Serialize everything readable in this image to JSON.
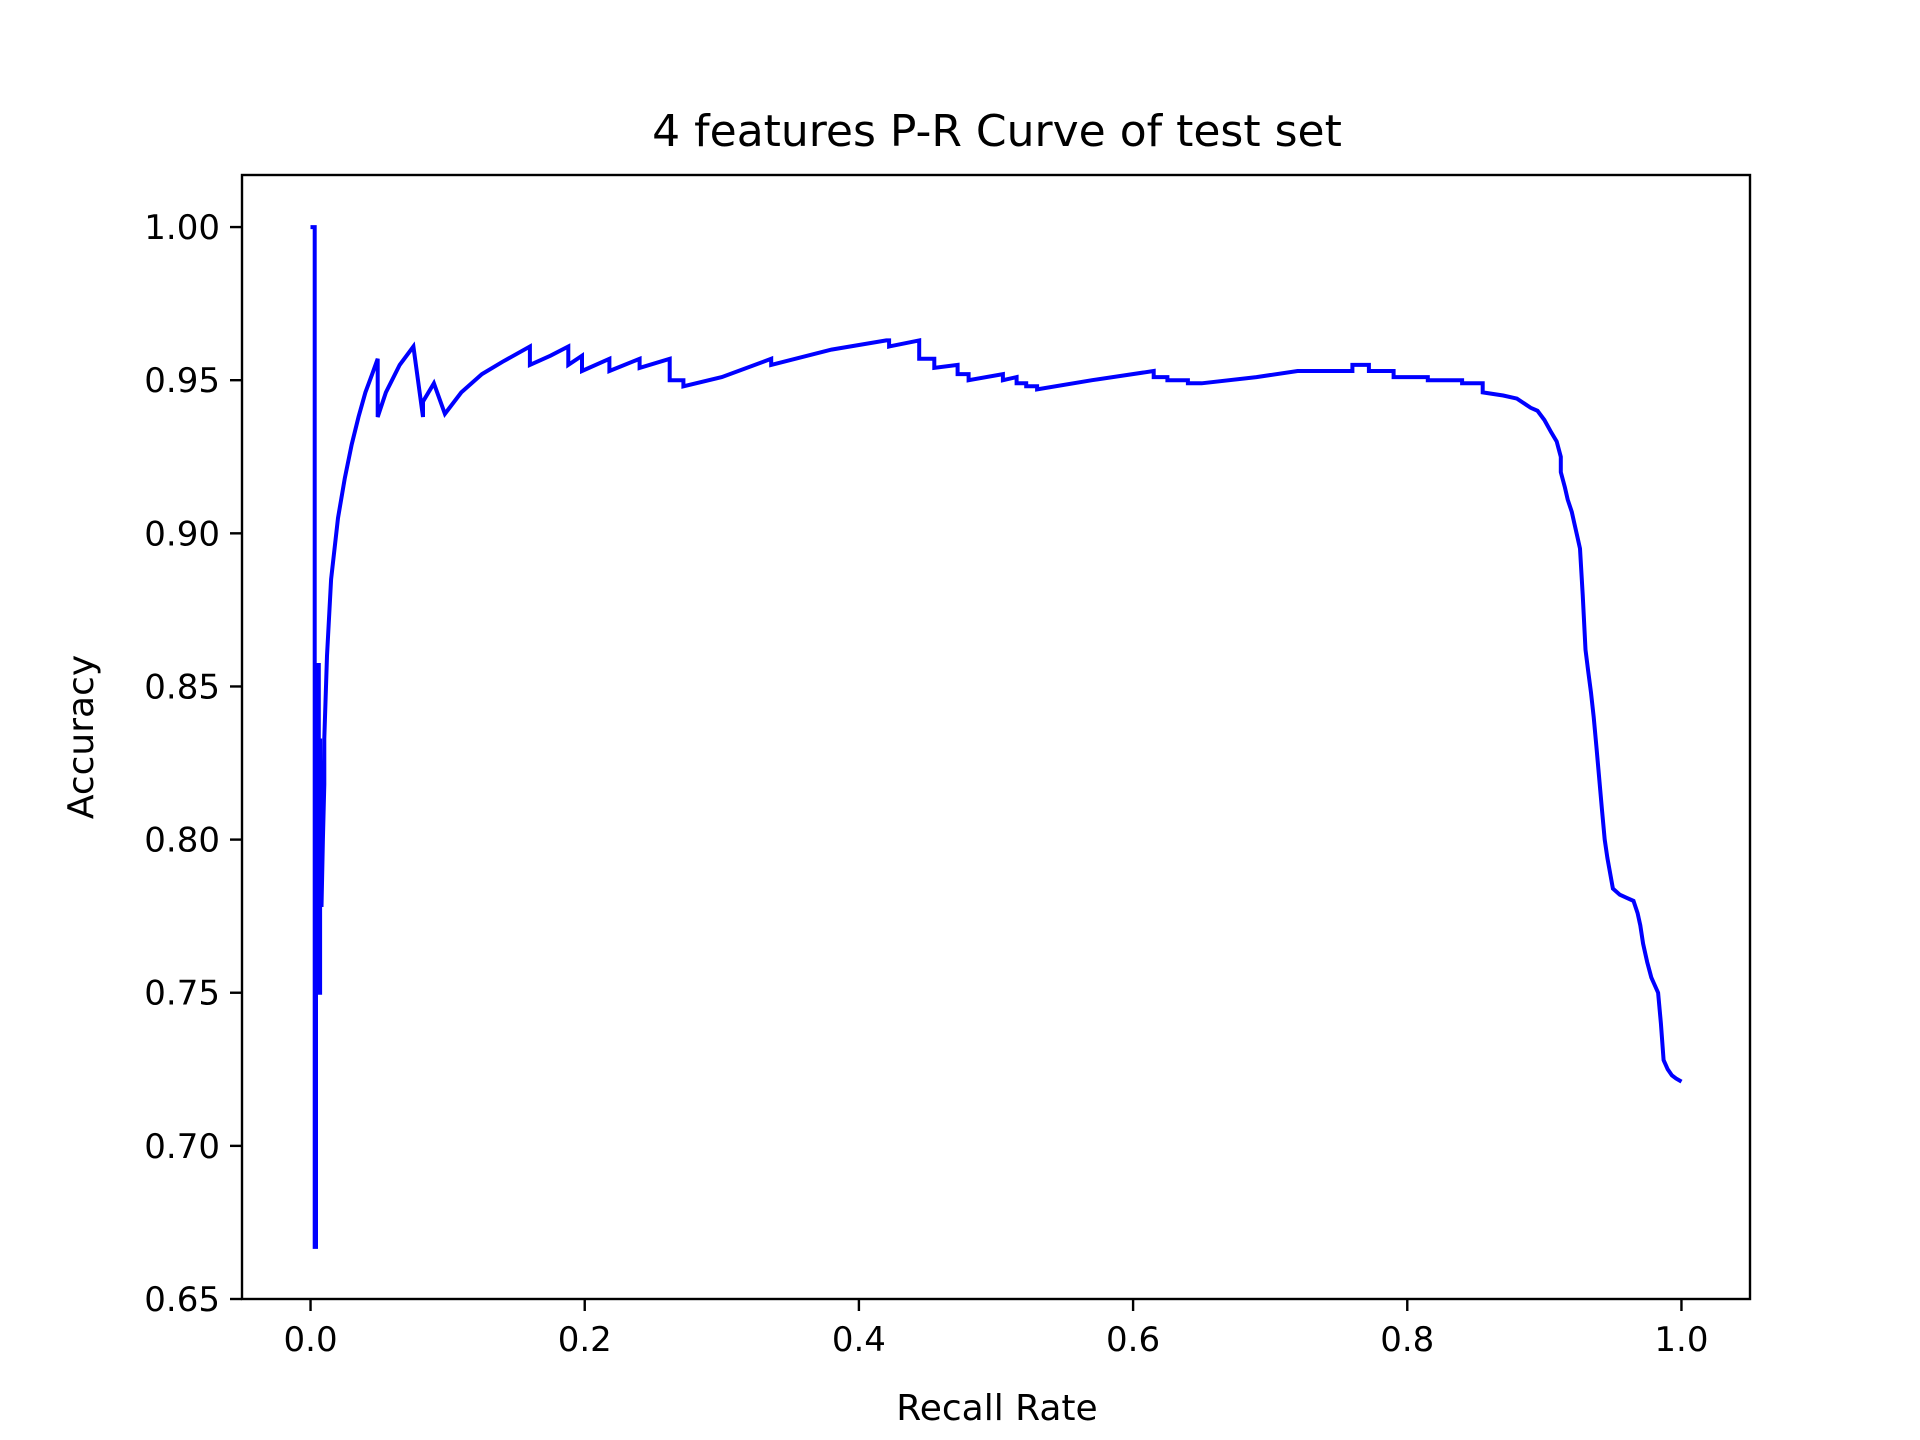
{
  "chart_data": {
    "type": "line",
    "title": "4 features P-R Curve of test set",
    "xlabel": "Recall Rate",
    "ylabel": "Accuracy",
    "xlim": [
      -0.05,
      1.05
    ],
    "ylim": [
      0.65,
      1.017
    ],
    "x_ticks": [
      0.0,
      0.2,
      0.4,
      0.6,
      0.8,
      1.0
    ],
    "x_tick_labels": [
      "0.0",
      "0.2",
      "0.4",
      "0.6",
      "0.8",
      "1.0"
    ],
    "y_ticks": [
      0.65,
      0.7,
      0.75,
      0.8,
      0.85,
      0.9,
      0.95,
      1.0
    ],
    "y_tick_labels": [
      "0.65",
      "0.70",
      "0.75",
      "0.80",
      "0.85",
      "0.90",
      "0.95",
      "1.00"
    ],
    "grid": false,
    "series": [
      {
        "color": "#0000ff",
        "x": [
          0.0,
          0.003,
          0.003,
          0.004,
          0.004,
          0.005,
          0.006,
          0.006,
          0.007,
          0.007,
          0.008,
          0.009,
          0.01,
          0.01,
          0.012,
          0.015,
          0.02,
          0.025,
          0.03,
          0.035,
          0.04,
          0.045,
          0.049,
          0.049,
          0.055,
          0.065,
          0.075,
          0.082,
          0.082,
          0.09,
          0.098,
          0.098,
          0.11,
          0.125,
          0.14,
          0.16,
          0.16,
          0.175,
          0.188,
          0.188,
          0.198,
          0.198,
          0.218,
          0.218,
          0.24,
          0.24,
          0.262,
          0.262,
          0.272,
          0.272,
          0.3,
          0.336,
          0.336,
          0.38,
          0.42,
          0.422,
          0.422,
          0.444,
          0.444,
          0.455,
          0.455,
          0.472,
          0.472,
          0.48,
          0.48,
          0.505,
          0.505,
          0.515,
          0.515,
          0.522,
          0.522,
          0.53,
          0.53,
          0.57,
          0.615,
          0.615,
          0.625,
          0.625,
          0.64,
          0.64,
          0.65,
          0.65,
          0.69,
          0.72,
          0.76,
          0.76,
          0.772,
          0.772,
          0.79,
          0.79,
          0.815,
          0.815,
          0.84,
          0.84,
          0.855,
          0.855,
          0.87,
          0.88,
          0.89,
          0.895,
          0.9,
          0.905,
          0.909,
          0.912,
          0.912,
          0.915,
          0.917,
          0.92,
          0.922,
          0.924,
          0.926,
          0.928,
          0.93,
          0.932,
          0.934,
          0.936,
          0.938,
          0.94,
          0.942,
          0.944,
          0.946,
          0.95,
          0.955,
          0.96,
          0.965,
          0.968,
          0.97,
          0.972,
          0.975,
          0.978,
          0.98,
          0.983,
          0.985,
          0.987,
          0.99,
          0.993,
          0.996,
          1.0
        ],
        "y": [
          1.0,
          1.0,
          0.667,
          0.667,
          0.75,
          0.857,
          0.857,
          0.75,
          0.75,
          0.833,
          0.778,
          0.8,
          0.818,
          0.833,
          0.86,
          0.885,
          0.905,
          0.918,
          0.929,
          0.938,
          0.946,
          0.952,
          0.957,
          0.938,
          0.946,
          0.955,
          0.961,
          0.938,
          0.943,
          0.949,
          0.939,
          0.939,
          0.946,
          0.952,
          0.956,
          0.961,
          0.955,
          0.958,
          0.961,
          0.955,
          0.958,
          0.953,
          0.957,
          0.953,
          0.957,
          0.954,
          0.957,
          0.95,
          0.95,
          0.948,
          0.951,
          0.957,
          0.955,
          0.96,
          0.963,
          0.963,
          0.961,
          0.963,
          0.957,
          0.957,
          0.954,
          0.955,
          0.952,
          0.952,
          0.95,
          0.952,
          0.95,
          0.951,
          0.949,
          0.949,
          0.948,
          0.948,
          0.947,
          0.95,
          0.953,
          0.951,
          0.951,
          0.95,
          0.95,
          0.949,
          0.949,
          0.949,
          0.951,
          0.953,
          0.953,
          0.955,
          0.955,
          0.953,
          0.953,
          0.951,
          0.951,
          0.95,
          0.95,
          0.949,
          0.949,
          0.946,
          0.945,
          0.944,
          0.941,
          0.94,
          0.937,
          0.933,
          0.93,
          0.925,
          0.92,
          0.915,
          0.911,
          0.907,
          0.903,
          0.899,
          0.895,
          0.88,
          0.862,
          0.855,
          0.848,
          0.84,
          0.83,
          0.82,
          0.81,
          0.8,
          0.794,
          0.784,
          0.782,
          0.781,
          0.78,
          0.776,
          0.772,
          0.766,
          0.76,
          0.755,
          0.753,
          0.75,
          0.74,
          0.728,
          0.725,
          0.723,
          0.722,
          0.721
        ]
      }
    ]
  }
}
